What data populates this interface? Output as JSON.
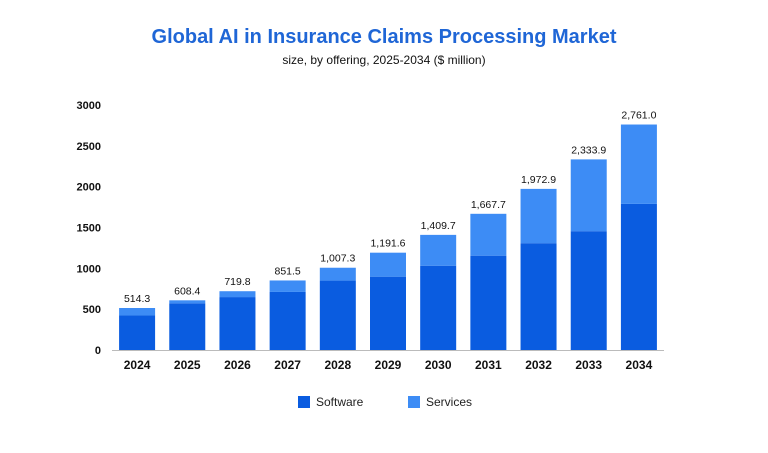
{
  "chart_data": {
    "type": "bar",
    "stacked": true,
    "title": "Global AI in Insurance Claims Processing Market",
    "subtitle": "size, by offering, 2025-2034 ($ million)",
    "xlabel": "",
    "ylabel": "",
    "categories": [
      "2024",
      "2025",
      "2026",
      "2027",
      "2028",
      "2029",
      "2030",
      "2031",
      "2032",
      "2033",
      "2034"
    ],
    "series": [
      {
        "name": "Software",
        "color": "#0a5ce0",
        "values": [
          423,
          572,
          648,
          711,
          850,
          898,
          1032,
          1155,
          1308,
          1455,
          1789
        ]
      },
      {
        "name": "Services",
        "color": "#3d8cf5",
        "values": [
          91.3,
          36.4,
          71.8,
          140.5,
          157.3,
          293.6,
          377.7,
          512.7,
          664.9,
          878.9,
          972.0
        ]
      }
    ],
    "totals": [
      "514.3",
      "608.4",
      "719.8",
      "851.5",
      "1,007.3",
      "1,191.6",
      "1,409.7",
      "1,667.7",
      "1,972.9",
      "2,333.9",
      "2,761.0"
    ],
    "ylim": [
      0,
      3000
    ],
    "yticks": [
      0,
      500,
      1000,
      1500,
      2000,
      2500,
      3000
    ],
    "grid": false,
    "legend_position": "bottom-center"
  }
}
